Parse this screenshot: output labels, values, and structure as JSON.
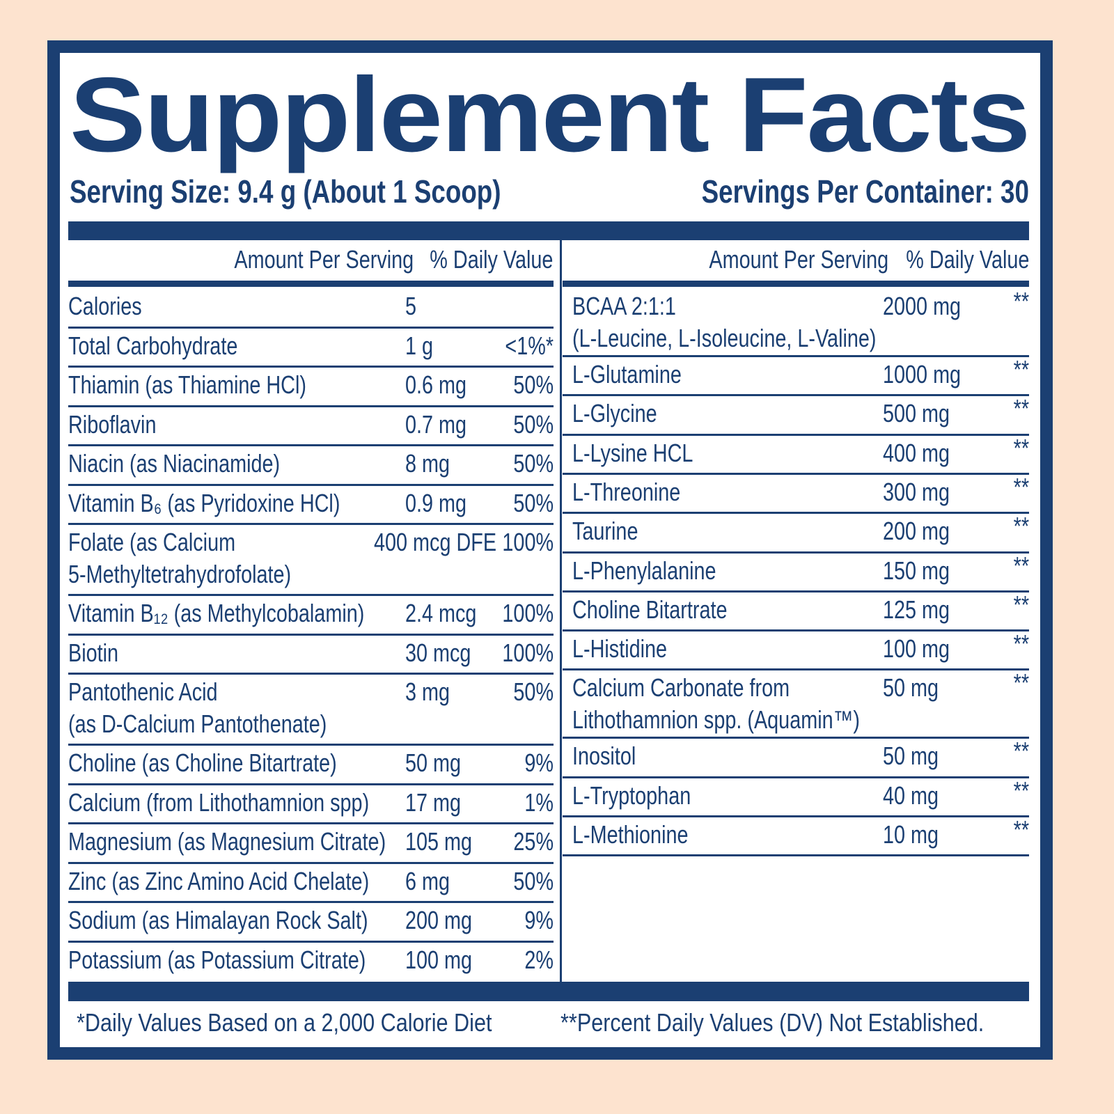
{
  "header": {
    "title": "Supplement Facts",
    "serving_size": "Serving Size: 9.4 g (About 1 Scoop)",
    "servings_per_container": "Servings Per Container: 30"
  },
  "left_table": {
    "columns": {
      "amount": "Amount Per Serving",
      "dv": "% Daily Value"
    },
    "rows": [
      {
        "name": [
          "Calories"
        ],
        "amount": "5"
      },
      {
        "name": [
          "Total Carbohydrate"
        ],
        "amount": "1 g",
        "dv": "<1%*"
      },
      {
        "name": [
          "Thiamin (as Thiamine HCl)"
        ],
        "amount": "0.6 mg",
        "dv": "50%"
      },
      {
        "name": [
          "Riboflavin"
        ],
        "amount": "0.7 mg",
        "dv": "50%"
      },
      {
        "name": [
          "Niacin (as Niacinamide)"
        ],
        "amount": "8 mg",
        "dv": "50%"
      },
      {
        "name": [
          "Vitamin B₆ (as Pyridoxine HCl)"
        ],
        "amount": "0.9 mg",
        "dv": "50%"
      },
      {
        "name": [
          "Folate (as Calcium",
          "5-Methyltetrahydrofolate)"
        ],
        "amount": "400 mcg DFE",
        "dv": "100%"
      },
      {
        "name": [
          "Vitamin B₁₂ (as Methylcobalamin)"
        ],
        "amount": "2.4 mcg",
        "dv": "100%"
      },
      {
        "name": [
          "Biotin"
        ],
        "amount": "30 mcg",
        "dv": "100%"
      },
      {
        "name": [
          "Pantothenic Acid",
          "(as D-Calcium Pantothenate)"
        ],
        "amount": "3 mg",
        "dv": "50%"
      },
      {
        "name": [
          "Choline (as Choline Bitartrate)"
        ],
        "amount": "50 mg",
        "dv": "9%"
      },
      {
        "name": [
          "Calcium (from Lithothamnion spp)"
        ],
        "amount": "17 mg",
        "dv": "1%"
      },
      {
        "name": [
          "Magnesium (as Magnesium Citrate)"
        ],
        "amount": "105 mg",
        "dv": "25%"
      },
      {
        "name": [
          "Zinc (as Zinc Amino Acid Chelate)"
        ],
        "amount": "6 mg",
        "dv": "50%"
      },
      {
        "name": [
          "Sodium (as Himalayan Rock Salt)"
        ],
        "amount": "200 mg",
        "dv": "9%"
      },
      {
        "name": [
          "Potassium (as Potassium Citrate)"
        ],
        "amount": "100 mg",
        "dv": "2%"
      }
    ]
  },
  "right_table": {
    "columns": {
      "amount": "Amount Per Serving",
      "dv": "% Daily Value"
    },
    "rows": [
      {
        "name": [
          "BCAA 2:1:1",
          "(L-Leucine, L-Isoleucine, L-Valine)"
        ],
        "amount": "2000 mg",
        "dv": "**"
      },
      {
        "name": [
          "L-Glutamine"
        ],
        "amount": "1000 mg",
        "dv": "**"
      },
      {
        "name": [
          "L-Glycine"
        ],
        "amount": "500 mg",
        "dv": "**"
      },
      {
        "name": [
          "L-Lysine HCL"
        ],
        "amount": "400 mg",
        "dv": "**"
      },
      {
        "name": [
          "L-Threonine"
        ],
        "amount": "300 mg",
        "dv": "**"
      },
      {
        "name": [
          "Taurine"
        ],
        "amount": "200 mg",
        "dv": "**"
      },
      {
        "name": [
          "L-Phenylalanine"
        ],
        "amount": "150 mg",
        "dv": "**"
      },
      {
        "name": [
          "Choline Bitartrate"
        ],
        "amount": "125 mg",
        "dv": "**"
      },
      {
        "name": [
          "L-Histidine"
        ],
        "amount": "100 mg",
        "dv": "**"
      },
      {
        "name": [
          "Calcium Carbonate from",
          "Lithothamnion spp. (Aquamin™)"
        ],
        "amount": "50 mg",
        "dv": "**"
      },
      {
        "name": [
          "Inositol"
        ],
        "amount": "50 mg",
        "dv": "**"
      },
      {
        "name": [
          "L-Tryptophan"
        ],
        "amount": "40 mg",
        "dv": "**"
      },
      {
        "name": [
          "L-Methionine"
        ],
        "amount": "10 mg",
        "dv": "**"
      }
    ]
  },
  "footnotes": {
    "daily_values": "*Daily Values Based on a 2,000 Calorie Diet",
    "not_established": "**Percent Daily Values (DV) Not Established."
  }
}
